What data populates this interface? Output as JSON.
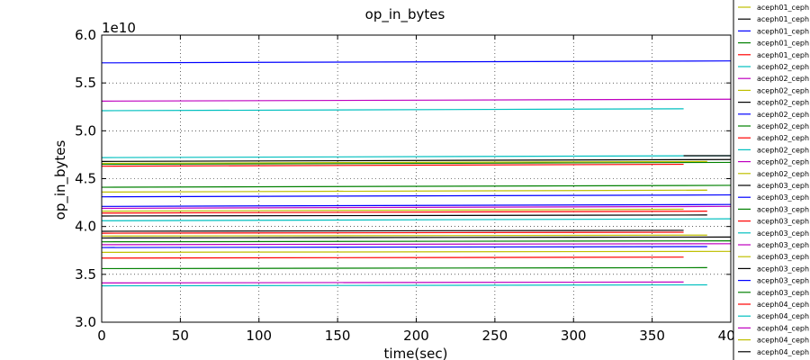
{
  "chart_data": {
    "type": "line",
    "title": "op_in_bytes",
    "x_label": "time(sec)",
    "y_label": "op_in_bytes",
    "y_offset_label": "1e10",
    "xlim": [
      0,
      400
    ],
    "xticks": [
      0,
      50,
      100,
      150,
      200,
      250,
      300,
      350,
      400
    ],
    "ylim": [
      3.0,
      6.0
    ],
    "yticks": [
      {
        "value": 3.0,
        "label": "3.0"
      },
      {
        "value": 3.5,
        "label": "3.5"
      },
      {
        "value": 4.0,
        "label": "4.0"
      },
      {
        "value": 4.5,
        "label": "4.5"
      },
      {
        "value": 5.0,
        "label": "5.0"
      },
      {
        "value": 5.5,
        "label": "5.5"
      },
      {
        "value": 6.0,
        "label": "6.0"
      }
    ],
    "grid": true,
    "series": [
      {
        "name": "aceph01_ceph",
        "color": "#bfbf00",
        "x": [
          0,
          385
        ],
        "values": [
          4.36,
          4.38
        ]
      },
      {
        "name": "aceph01_ceph",
        "color": "#000000",
        "x": [
          0,
          385
        ],
        "values": [
          4.11,
          4.12
        ]
      },
      {
        "name": "aceph01_ceph",
        "color": "#0000ff",
        "x": [
          0,
          400
        ],
        "values": [
          5.71,
          5.73
        ]
      },
      {
        "name": "aceph01_ceph",
        "color": "#008000",
        "x": [
          0,
          400
        ],
        "values": [
          4.41,
          4.43
        ]
      },
      {
        "name": "aceph01_ceph",
        "color": "#ff0000",
        "x": [
          0,
          385
        ],
        "values": [
          4.14,
          4.16
        ]
      },
      {
        "name": "aceph02_ceph",
        "color": "#00bfbf",
        "x": [
          0,
          370
        ],
        "values": [
          5.21,
          5.23
        ]
      },
      {
        "name": "aceph02_ceph",
        "color": "#bf00bf",
        "x": [
          0,
          400
        ],
        "values": [
          5.31,
          5.33
        ]
      },
      {
        "name": "aceph02_ceph",
        "color": "#bfbf00",
        "x": [
          0,
          370
        ],
        "values": [
          4.16,
          4.18
        ]
      },
      {
        "name": "aceph02_ceph",
        "color": "#000000",
        "x": [
          0,
          370
        ],
        "values": [
          3.95,
          3.96
        ]
      },
      {
        "name": "aceph02_ceph",
        "color": "#0000ff",
        "x": [
          0,
          400
        ],
        "values": [
          4.31,
          4.33
        ]
      },
      {
        "name": "aceph02_ceph",
        "color": "#008000",
        "x": [
          0,
          400
        ],
        "values": [
          3.84,
          3.85
        ]
      },
      {
        "name": "aceph02_ceph",
        "color": "#ff0000",
        "x": [
          0,
          370
        ],
        "values": [
          3.93,
          3.94
        ]
      },
      {
        "name": "aceph02_ceph",
        "color": "#00bfbf",
        "x": [
          0,
          400
        ],
        "values": [
          4.72,
          4.74
        ]
      },
      {
        "name": "aceph02_ceph",
        "color": "#bf00bf",
        "x": [
          0,
          400
        ],
        "values": [
          4.19,
          4.21
        ]
      },
      {
        "name": "aceph02_ceph",
        "color": "#bfbf00",
        "x": [
          0,
          385
        ],
        "values": [
          3.9,
          3.91
        ]
      },
      {
        "name": "aceph03_ceph",
        "color": "#000000",
        "x": [
          0,
          400
        ],
        "values": [
          3.88,
          3.89
        ]
      },
      {
        "name": "aceph03_ceph",
        "color": "#0000ff",
        "x": [
          0,
          400
        ],
        "values": [
          4.21,
          4.23
        ]
      },
      {
        "name": "aceph03_ceph",
        "color": "#008000",
        "x": [
          0,
          385
        ],
        "values": [
          3.56,
          3.57
        ]
      },
      {
        "name": "aceph03_ceph",
        "color": "#ff0000",
        "x": [
          0,
          370
        ],
        "values": [
          3.67,
          3.68
        ]
      },
      {
        "name": "aceph03_ceph",
        "color": "#00bfbf",
        "x": [
          0,
          400
        ],
        "values": [
          4.06,
          4.08
        ]
      },
      {
        "name": "aceph03_ceph",
        "color": "#bf00bf",
        "x": [
          0,
          400
        ],
        "values": [
          3.81,
          3.82
        ]
      },
      {
        "name": "aceph03_ceph",
        "color": "#bfbf00",
        "x": [
          0,
          400
        ],
        "values": [
          3.73,
          3.74
        ]
      },
      {
        "name": "aceph03_ceph",
        "color": "#000000",
        "x": [
          0,
          400
        ],
        "values": [
          4.68,
          4.7
        ]
      },
      {
        "name": "aceph03_ceph",
        "color": "#0000ff",
        "x": [
          0,
          385
        ],
        "values": [
          3.78,
          3.79
        ]
      },
      {
        "name": "aceph03_ceph",
        "color": "#008000",
        "x": [
          0,
          400
        ],
        "values": [
          4.65,
          4.67
        ]
      },
      {
        "name": "aceph04_ceph",
        "color": "#ff0000",
        "x": [
          0,
          370
        ],
        "values": [
          4.63,
          4.65
        ]
      },
      {
        "name": "aceph04_ceph",
        "color": "#00bfbf",
        "x": [
          0,
          385
        ],
        "values": [
          3.38,
          3.39
        ]
      },
      {
        "name": "aceph04_ceph",
        "color": "#bf00bf",
        "x": [
          0,
          370
        ],
        "values": [
          3.41,
          3.42
        ]
      },
      {
        "name": "aceph04_ceph",
        "color": "#bfbf00",
        "x": [
          0,
          385
        ],
        "values": [
          4.66,
          4.68
        ]
      },
      {
        "name": "aceph04_ceph",
        "color": "#000000",
        "x": [
          370,
          400
        ],
        "values": [
          4.74,
          4.74
        ]
      }
    ]
  }
}
